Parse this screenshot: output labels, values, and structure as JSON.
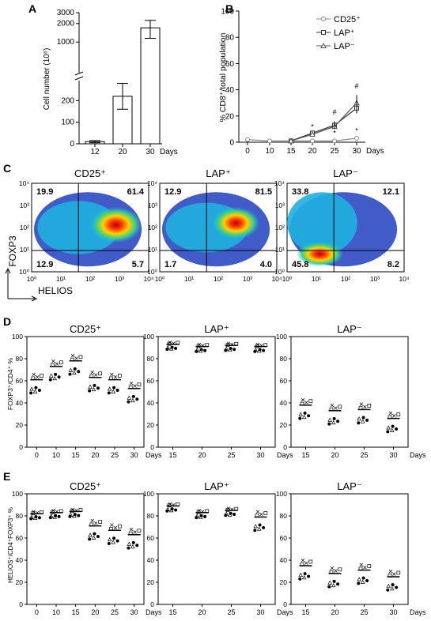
{
  "panels": {
    "A": {
      "letter": "A",
      "ylabel": "Cell number (10⁶)",
      "xunit": "Days",
      "ytick_labels": [
        "0",
        "100",
        "200",
        "300",
        "1000",
        "2000",
        "3000"
      ],
      "chart_data": {
        "type": "bar",
        "categories": [
          "12",
          "20",
          "30"
        ],
        "values": [
          10,
          220,
          1700
        ],
        "errors": [
          5,
          60,
          550
        ],
        "ylim": [
          0,
          3000
        ],
        "broken_axis": true,
        "xlabel": "Days",
        "ylabel": "Cell number (10⁶)"
      }
    },
    "B": {
      "letter": "B",
      "ylabel": "% CD8⁺/total population",
      "xunit": "Days",
      "legend": [
        "CD25⁺",
        "LAP⁺",
        "LAP⁻"
      ],
      "annotations": [
        "#",
        "#",
        "*",
        "*",
        "*"
      ],
      "chart_data": {
        "type": "line",
        "x": [
          0,
          10,
          15,
          20,
          25,
          30
        ],
        "ylim": [
          0,
          100
        ],
        "xlabel": "Days",
        "ylabel": "% CD8⁺/total population",
        "series": [
          {
            "name": "CD25⁺",
            "values": [
              2,
              1,
              1,
              1,
              1,
              3
            ]
          },
          {
            "name": "LAP⁺",
            "values": [
              null,
              null,
              1,
              7,
              13,
              26
            ]
          },
          {
            "name": "LAP⁻",
            "values": [
              null,
              null,
              1,
              6,
              12,
              30
            ]
          }
        ]
      }
    },
    "C": {
      "letter": "C",
      "ylabel": "FOXP3",
      "xlabel": "HELIOS",
      "plots": [
        {
          "title": "CD25⁺",
          "q": [
            "19.9",
            "61.4",
            "12.9",
            "5.7"
          ]
        },
        {
          "title": "LAP⁺",
          "q": [
            "12.9",
            "81.5",
            "1.7",
            "4.0"
          ]
        },
        {
          "title": "LAP⁻",
          "q": [
            "33.8",
            "12.1",
            "45.8",
            "8.2"
          ]
        }
      ]
    },
    "D": {
      "letter": "D",
      "ylabel": "FOXP3⁺/CD4⁺ %",
      "xunit": "Days",
      "chart_data": [
        {
          "type": "scatter",
          "title": "CD25⁺",
          "x": [
            "0",
            "10",
            "15",
            "20",
            "25",
            "30"
          ],
          "median": [
            61,
            73,
            78,
            63,
            61,
            53
          ],
          "ylim": [
            0,
            100
          ]
        },
        {
          "type": "scatter",
          "title": "LAP⁺",
          "x": [
            "15",
            "20",
            "25",
            "30"
          ],
          "median": [
            93,
            91,
            92,
            91
          ],
          "ylim": [
            0,
            100
          ]
        },
        {
          "type": "scatter",
          "title": "LAP⁻",
          "x": [
            "15",
            "20",
            "25",
            "30"
          ],
          "median": [
            38,
            33,
            34,
            26
          ],
          "ylim": [
            0,
            100
          ]
        }
      ]
    },
    "E": {
      "letter": "E",
      "ylabel": "HELIOS⁺/CD4⁺FOXP3⁺ %",
      "xunit": "Days",
      "chart_data": [
        {
          "type": "scatter",
          "title": "CD25⁺",
          "x": [
            "0",
            "10",
            "15",
            "20",
            "25",
            "30"
          ],
          "median": [
            82,
            83,
            84,
            71,
            67,
            63
          ],
          "ylim": [
            0,
            100
          ]
        },
        {
          "type": "scatter",
          "title": "LAP⁺",
          "x": [
            "15",
            "20",
            "25",
            "30"
          ],
          "median": [
            89,
            83,
            85,
            79
          ],
          "ylim": [
            0,
            100
          ]
        },
        {
          "type": "scatter",
          "title": "LAP⁻",
          "x": [
            "15",
            "20",
            "25",
            "30"
          ],
          "median": [
            35,
            28,
            31,
            25
          ],
          "ylim": [
            0,
            100
          ]
        }
      ]
    }
  },
  "ticks": {
    "y100": [
      "0",
      "20",
      "40",
      "60",
      "80",
      "100"
    ],
    "log": [
      "10⁰",
      "10¹",
      "10²",
      "10³",
      "10⁴"
    ]
  }
}
